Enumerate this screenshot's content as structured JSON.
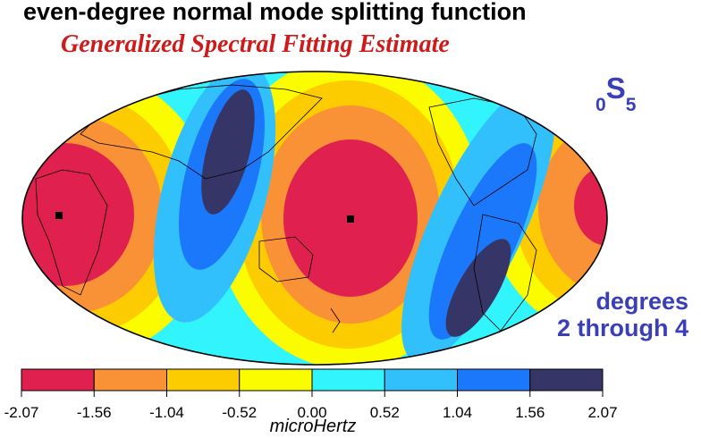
{
  "header": {
    "title": "even-degree normal mode splitting function",
    "subtitle": "Generalized Spectral Fitting Estimate"
  },
  "mode_label": {
    "n": "0",
    "letter": "S",
    "l": "5"
  },
  "degrees_note": {
    "line1": "degrees",
    "line2": "2 through 4"
  },
  "colorbar": {
    "ticks": [
      "-2.07",
      "-1.56",
      "-1.04",
      "-0.52",
      "0.00",
      "0.52",
      "1.04",
      "1.56",
      "2.07"
    ],
    "colors": [
      "#e0204f",
      "#f99136",
      "#fdcc00",
      "#fcfc00",
      "#32f4fc",
      "#32c0fc",
      "#1b78fb",
      "#353567"
    ],
    "unit": "microHertz"
  }
}
